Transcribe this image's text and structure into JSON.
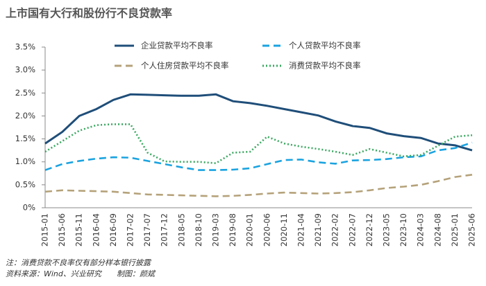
{
  "chart_data": {
    "type": "line",
    "title": "上市国有大行和股份行不良贷款率",
    "categories": [
      "2015-01",
      "2015-06",
      "2015-11",
      "2016-04",
      "2016-09",
      "2017-02",
      "2017-07",
      "2017-12",
      "2018-05",
      "2018-10",
      "2019-03",
      "2019-08",
      "2020-01",
      "2020-06",
      "2020-11",
      "2021-04",
      "2021-09",
      "2022-02",
      "2022-07",
      "2022-12",
      "2023-05",
      "2023-10",
      "2024-03",
      "2024-08",
      "2025-01",
      "2025-06"
    ],
    "series": [
      {
        "name": "企业贷款平均不良率",
        "color": "#1f4e79",
        "dash": "solid",
        "values": [
          1.4,
          1.65,
          2.0,
          2.15,
          2.35,
          2.47,
          2.46,
          2.45,
          2.44,
          2.44,
          2.47,
          2.32,
          2.28,
          2.22,
          2.15,
          2.08,
          2.01,
          1.88,
          1.78,
          1.74,
          1.62,
          1.56,
          1.52,
          1.4,
          1.36,
          1.25
        ]
      },
      {
        "name": "个人贷款平均不良率",
        "color": "#1aa3e0",
        "dash": "dashed",
        "values": [
          0.82,
          0.95,
          1.02,
          1.07,
          1.1,
          1.09,
          1.02,
          0.95,
          0.88,
          0.82,
          0.82,
          0.83,
          0.86,
          0.95,
          1.04,
          1.05,
          0.99,
          0.96,
          1.03,
          1.04,
          1.06,
          1.1,
          1.12,
          1.25,
          1.3,
          1.42
        ]
      },
      {
        "name": "个人住房贷款平均不良率",
        "color": "#b5a27a",
        "dash": "dashed",
        "values": [
          0.35,
          0.38,
          0.37,
          0.36,
          0.35,
          0.32,
          0.29,
          0.28,
          0.27,
          0.26,
          0.25,
          0.26,
          0.28,
          0.31,
          0.33,
          0.32,
          0.31,
          0.32,
          0.34,
          0.38,
          0.43,
          0.46,
          0.5,
          0.58,
          0.67,
          0.72
        ]
      },
      {
        "name": "消费贷款平均不良率",
        "color": "#3aa860",
        "dash": "dotted",
        "values": [
          1.22,
          1.45,
          1.68,
          1.8,
          1.82,
          1.82,
          1.2,
          1.01,
          1.0,
          1.0,
          0.97,
          1.2,
          1.22,
          1.55,
          1.4,
          1.33,
          1.28,
          1.22,
          1.15,
          1.28,
          1.2,
          1.12,
          1.15,
          1.35,
          1.55,
          1.58
        ]
      }
    ],
    "ylim": [
      0,
      3.5
    ],
    "yticks": [
      {
        "value": 0,
        "label": "0%"
      },
      {
        "value": 0.5,
        "label": "0.5%"
      },
      {
        "value": 1,
        "label": "1.0%"
      },
      {
        "value": 1.5,
        "label": "1.5%"
      },
      {
        "value": 2,
        "label": "2.0%"
      },
      {
        "value": 2.5,
        "label": "2.5%"
      },
      {
        "value": 3,
        "label": "3.0%"
      },
      {
        "value": 3.5,
        "label": "3.5%"
      }
    ],
    "notes": [
      "注：消费贷款不良率仅有部分样本银行披露",
      "资料来源：Wind、兴业研究",
      "制图：颜斌"
    ]
  }
}
